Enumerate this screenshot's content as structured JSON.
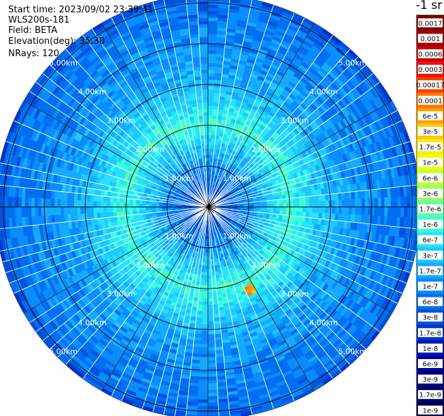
{
  "header": {
    "start_time": "Start time: 2023/09/02 23:39:41",
    "instrument": "WLS200s-181",
    "field": "Field: BETA",
    "elevation": "Elevation(deg): 35.30",
    "nrays": "NRays: 120"
  },
  "colorbar": {
    "unit_label": "-1 sr",
    "ticks": [
      "0.0017",
      "0.001",
      "0.0006",
      "0.0003",
      "0.00017",
      "0.0001",
      "6e-5",
      "3e-5",
      "1.7e-5",
      "1e-5",
      "6e-6",
      "3e-6",
      "1.7e-6",
      "1e-6",
      "6e-7",
      "3e-7",
      "1.7e-7",
      "1e-7",
      "6e-8",
      "3e-8",
      "1.7e-8",
      "1e-8",
      "6e-9",
      "3e-9",
      "1.7e-9",
      "1e-9"
    ],
    "colors": [
      "#7a0000",
      "#a00000",
      "#c80000",
      "#ee1010",
      "#ff3c00",
      "#ff7800",
      "#ffa000",
      "#ffc800",
      "#ffec00",
      "#e8ff10",
      "#c4ff3a",
      "#96ff66",
      "#66ffa0",
      "#3cffd6",
      "#28e2ff",
      "#1ec8ff",
      "#14aaff",
      "#0a8cff",
      "#006ef0",
      "#0050e0",
      "#0032cc",
      "#0014b4",
      "#00009a",
      "#000082",
      "#00006a",
      "#000050"
    ]
  },
  "chart_data": {
    "type": "heatmap",
    "subtype": "polar-ppi",
    "rays": 120,
    "range_unit": "km",
    "range_max_km": 5.2,
    "range_rings_km": [
      1,
      2,
      3,
      4,
      5
    ],
    "range_ring_labels": [
      "1.00km",
      "2.00km",
      "3.00km",
      "4.00km",
      "5.00km"
    ],
    "spoke_directions_deg": [
      0,
      30,
      60,
      90,
      120,
      150,
      180,
      210,
      240,
      270,
      300,
      330
    ],
    "value_profile": {
      "range_km": [
        0.0,
        0.5,
        1.0,
        2.0,
        2.6,
        3.2,
        4.0,
        5.0,
        5.2
      ],
      "log10_beta": [
        -7.6,
        -7.4,
        -7.0,
        -6.0,
        -6.4,
        -6.8,
        -7.0,
        -7.2,
        -7.6
      ]
    },
    "hotspot": {
      "azimuth_deg": 153,
      "range_km": 2.3,
      "value": "6e-5"
    },
    "colorscale": "log, 1e-9 to 0.0017 sr-1"
  }
}
